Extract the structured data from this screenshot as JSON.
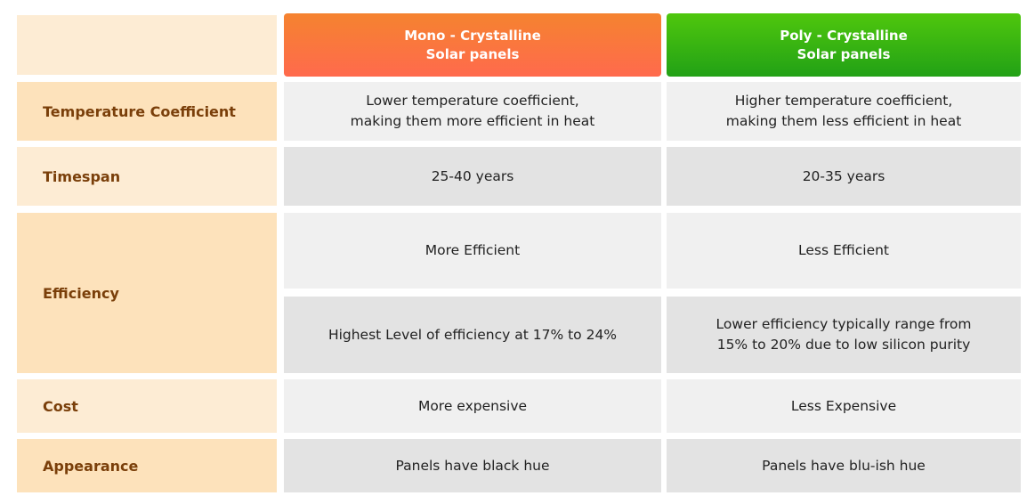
{
  "header": {
    "mono": {
      "line1": "Mono - Crystalline",
      "line2": "Solar panels"
    },
    "poly": {
      "line1": "Poly - Crystalline",
      "line2": "Solar panels"
    }
  },
  "rows": {
    "temperature": {
      "label": "Temperature Coefficient",
      "mono": [
        "Lower temperature coefficient,",
        "making them more efficient in heat"
      ],
      "poly": [
        "Higher temperature coefficient,",
        "making them less efficient in heat"
      ]
    },
    "timespan": {
      "label": "Timespan",
      "mono": "25-40 years",
      "poly": "20-35 years"
    },
    "efficiency": {
      "label": "Efficiency",
      "mono_a": "More Efficient",
      "poly_a": "Less Efficient",
      "mono_b": "Highest Level of efficiency at 17% to 24%",
      "poly_b": [
        "Lower efficiency typically range from",
        "15% to 20% due to low silicon purity"
      ]
    },
    "cost": {
      "label": "Cost",
      "mono": "More expensive",
      "poly": "Less Expensive"
    },
    "appearance": {
      "label": "Appearance",
      "mono": "Panels have black hue",
      "poly": "Panels have blu-ish hue"
    }
  },
  "colors": {
    "label_text": "#7a3f0a",
    "mono_header_top": "#f5832f",
    "mono_header_bottom": "#ff6a4d",
    "poly_header_top": "#4fc70d",
    "poly_header_bottom": "#22a116"
  }
}
